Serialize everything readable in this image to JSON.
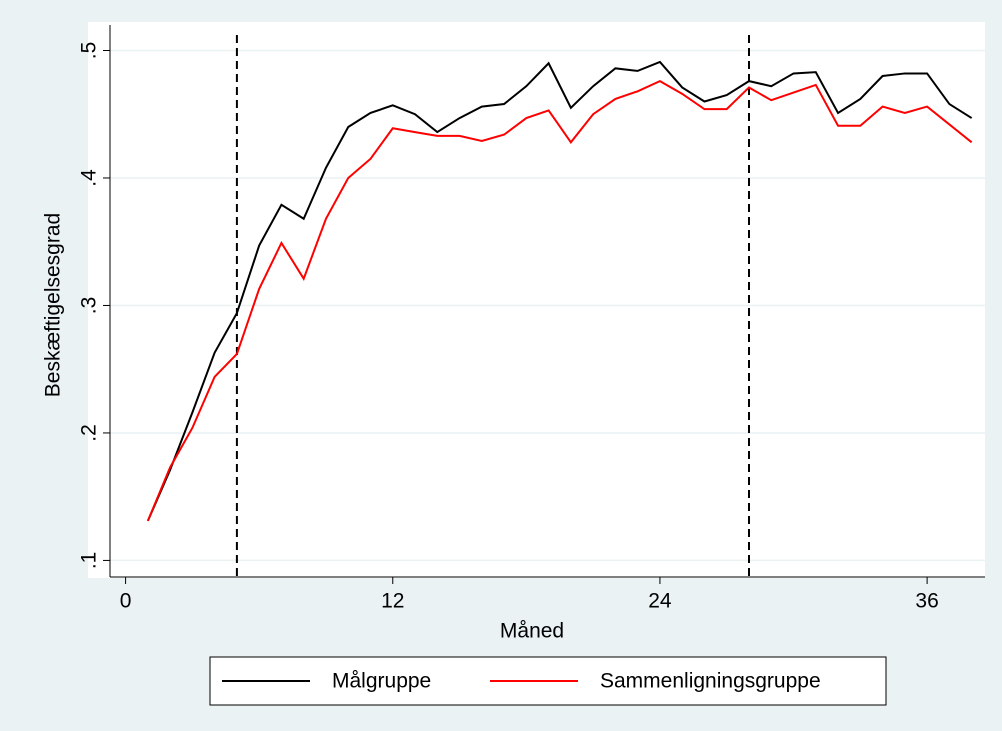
{
  "chart_data": {
    "type": "line",
    "x_label": "Måned",
    "y_label": "Beskæftigelsesgrad",
    "x": [
      1,
      2,
      3,
      4,
      5,
      6,
      7,
      8,
      9,
      10,
      11,
      12,
      13,
      14,
      15,
      16,
      17,
      18,
      19,
      20,
      21,
      22,
      23,
      24,
      25,
      26,
      27,
      28,
      29,
      30,
      31,
      32,
      33,
      34,
      35,
      36,
      37,
      38
    ],
    "series": [
      {
        "name": "Målgruppe",
        "color": "#000000",
        "values": [
          0.131,
          0.171,
          0.216,
          0.263,
          0.294,
          0.347,
          0.379,
          0.368,
          0.408,
          0.44,
          0.451,
          0.457,
          0.45,
          0.436,
          0.447,
          0.456,
          0.458,
          0.472,
          0.49,
          0.455,
          0.472,
          0.486,
          0.484,
          0.491,
          0.471,
          0.46,
          0.465,
          0.476,
          0.472,
          0.482,
          0.483,
          0.451,
          0.462,
          0.48,
          0.482,
          0.482,
          0.458,
          0.447
        ]
      },
      {
        "name": "Sammenligningsgruppe",
        "color": "#ff0000",
        "values": [
          0.131,
          0.173,
          0.204,
          0.244,
          0.262,
          0.313,
          0.349,
          0.321,
          0.368,
          0.4,
          0.415,
          0.439,
          0.436,
          0.433,
          0.433,
          0.429,
          0.434,
          0.447,
          0.453,
          0.428,
          0.45,
          0.462,
          0.468,
          0.476,
          0.466,
          0.454,
          0.454,
          0.471,
          0.461,
          0.467,
          0.473,
          0.441,
          0.441,
          0.456,
          0.451,
          0.456,
          0.442,
          0.428
        ]
      }
    ],
    "xlim": [
      -0.7,
      38.6
    ],
    "xticks": [
      0,
      12,
      24,
      36
    ],
    "ylim": [
      0.087,
      0.52
    ],
    "yticks": [
      {
        "value": 0.1,
        "label": ".1"
      },
      {
        "value": 0.2,
        "label": ".2"
      },
      {
        "value": 0.3,
        "label": ".3"
      },
      {
        "value": 0.4,
        "label": ".4"
      },
      {
        "value": 0.5,
        "label": ".5"
      }
    ],
    "vlines": [
      5,
      28
    ],
    "grid": true,
    "legend": "bottom"
  }
}
